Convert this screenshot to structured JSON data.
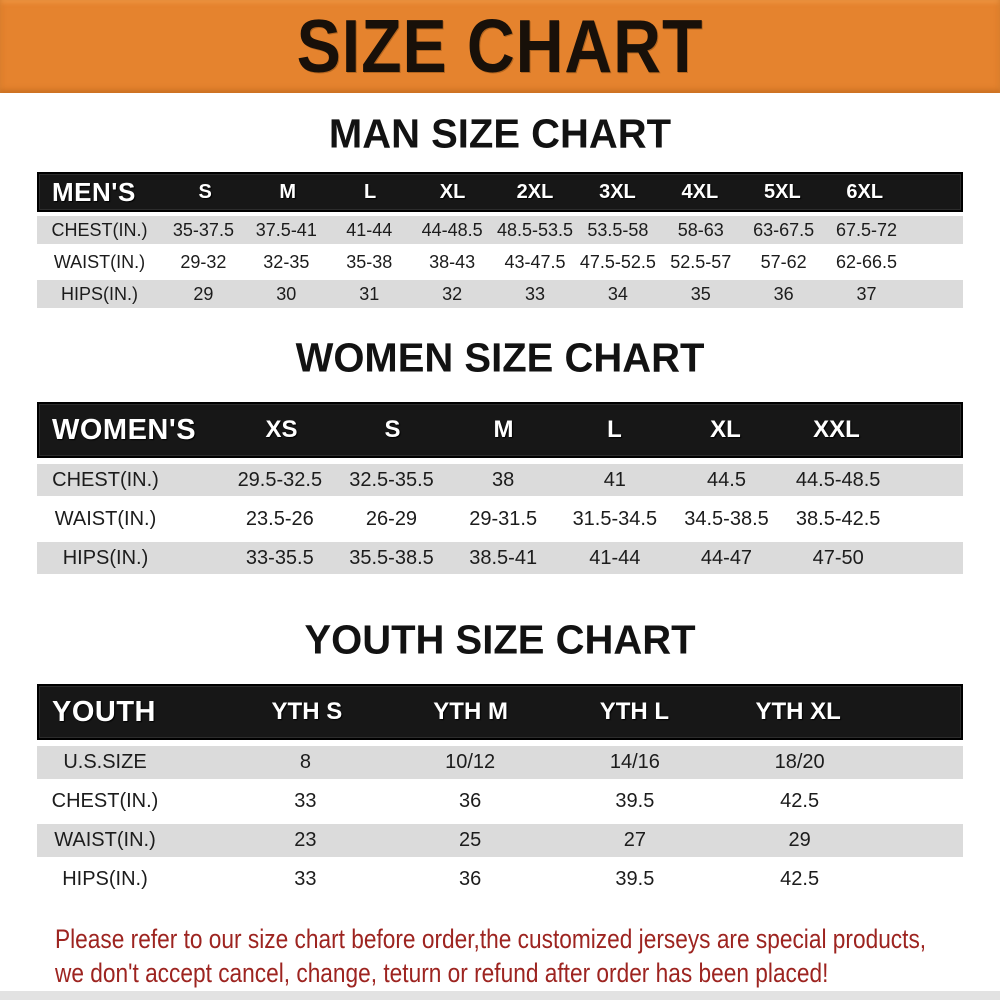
{
  "banner": {
    "title": "SIZE CHART",
    "bg_color": "#E5832E",
    "text_color": "#181009"
  },
  "colors": {
    "header_bar_bg": "#171717",
    "row_alt_bg": "#DBDBDB",
    "footer_text": "#9D2420"
  },
  "chart_data": [
    {
      "type": "table",
      "title": "MAN SIZE CHART",
      "header": [
        "MEN'S",
        "S",
        "M",
        "L",
        "XL",
        "2XL",
        "3XL",
        "4XL",
        "5XL",
        "6XL"
      ],
      "rows": [
        [
          "CHEST(IN.)",
          "35-37.5",
          "37.5-41",
          "41-44",
          "44-48.5",
          "48.5-53.5",
          "53.5-58",
          "58-63",
          "63-67.5",
          "67.5-72"
        ],
        [
          "WAIST(IN.)",
          "29-32",
          "32-35",
          "35-38",
          "38-43",
          "43-47.5",
          "47.5-52.5",
          "52.5-57",
          "57-62",
          "62-66.5"
        ],
        [
          "HIPS(IN.)",
          "29",
          "30",
          "31",
          "32",
          "33",
          "34",
          "35",
          "36",
          "37"
        ]
      ]
    },
    {
      "type": "table",
      "title": "WOMEN SIZE CHART",
      "header": [
        "WOMEN'S",
        "XS",
        "S",
        "M",
        "L",
        "XL",
        "XXL"
      ],
      "rows": [
        [
          "CHEST(IN.)",
          "29.5-32.5",
          "32.5-35.5",
          "38",
          "41",
          "44.5",
          "44.5-48.5"
        ],
        [
          "WAIST(IN.)",
          "23.5-26",
          "26-29",
          "29-31.5",
          "31.5-34.5",
          "34.5-38.5",
          "38.5-42.5"
        ],
        [
          "HIPS(IN.)",
          "33-35.5",
          "35.5-38.5",
          "38.5-41",
          "41-44",
          "44-47",
          "47-50"
        ]
      ]
    },
    {
      "type": "table",
      "title": "YOUTH SIZE CHART",
      "header": [
        "YOUTH",
        "YTH S",
        "YTH M",
        "YTH L",
        "YTH XL"
      ],
      "rows": [
        [
          "U.S.SIZE",
          "8",
          "10/12",
          "14/16",
          "18/20"
        ],
        [
          "CHEST(IN.)",
          "33",
          "36",
          "39.5",
          "42.5"
        ],
        [
          "WAIST(IN.)",
          "23",
          "25",
          "27",
          "29"
        ],
        [
          "HIPS(IN.)",
          "33",
          "36",
          "39.5",
          "42.5"
        ]
      ]
    }
  ],
  "footer": {
    "line1": "Please refer to our size chart before order,the customized jerseys are special products,",
    "line2": "we don't accept cancel, change, teturn or refund after order has been placed!"
  }
}
